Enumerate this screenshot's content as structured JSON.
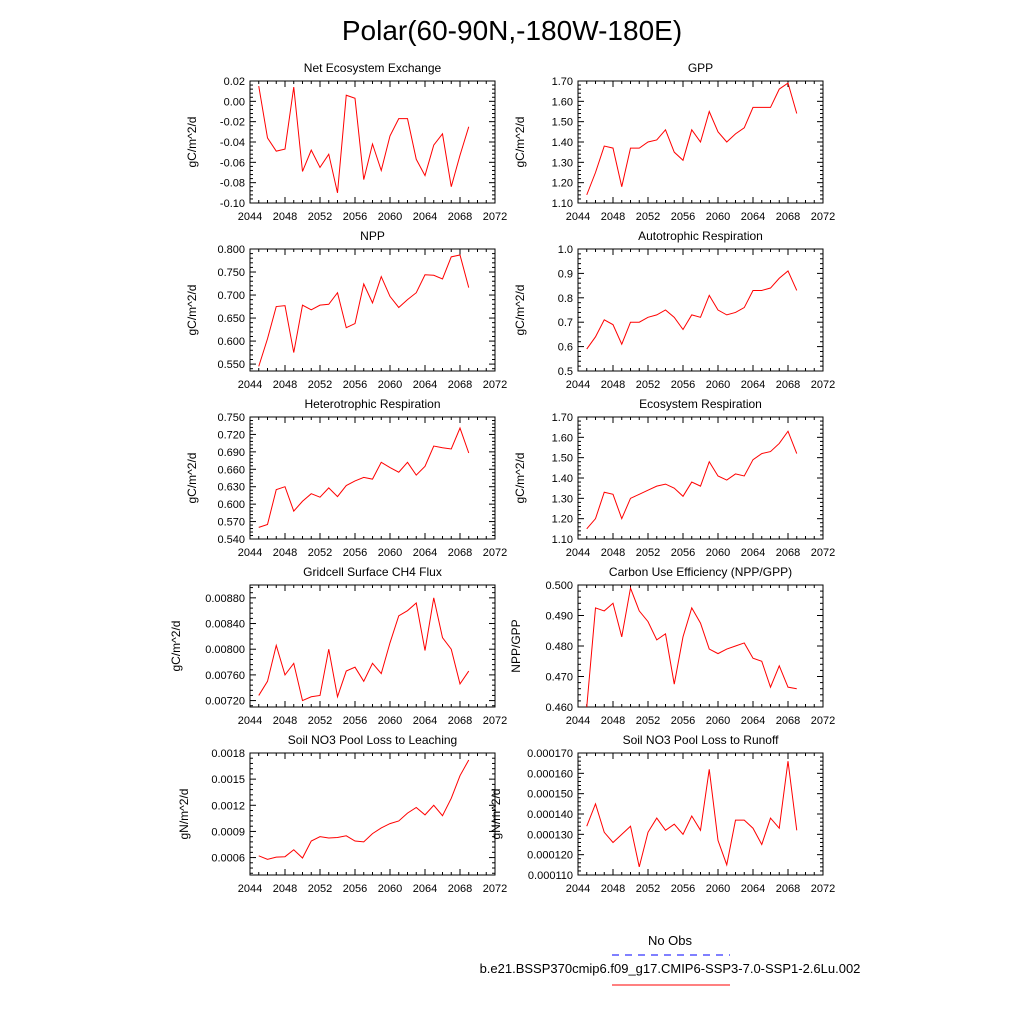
{
  "page": {
    "title": "Polar(60-90N,-180W-180E)"
  },
  "legend": {
    "entries": [
      {
        "label": "No Obs",
        "color": "#0000ff",
        "dash": "dashed"
      },
      {
        "label": "b.e21.BSSP370cmip6.f09_g17.CMIP6-SSP3-7.0-SSP1-2.6Lu.002",
        "color": "#ff0000",
        "dash": "solid"
      }
    ]
  },
  "chart_data": [
    {
      "type": "line",
      "title": "Net Ecosystem Exchange",
      "ylabel": "gC/m^2/d",
      "xlim": [
        2044,
        2072
      ],
      "ylim": [
        -0.1,
        0.02
      ],
      "xticks": [
        "2044",
        "2048",
        "2052",
        "2056",
        "2060",
        "2064",
        "2068",
        "2072"
      ],
      "yticks": [
        "-0.10",
        "-0.08",
        "-0.06",
        "-0.04",
        "-0.02",
        "0.00",
        "0.02"
      ],
      "x": [
        2045,
        2046,
        2047,
        2048,
        2049,
        2050,
        2051,
        2052,
        2053,
        2054,
        2055,
        2056,
        2057,
        2058,
        2059,
        2060,
        2061,
        2062,
        2063,
        2064,
        2065,
        2066,
        2067,
        2068,
        2069
      ],
      "series": [
        {
          "color": "#ff0000",
          "values": [
            0.015,
            -0.036,
            -0.049,
            -0.047,
            0.014,
            -0.069,
            -0.048,
            -0.065,
            -0.052,
            -0.09,
            0.006,
            0.003,
            -0.077,
            -0.042,
            -0.068,
            -0.034,
            -0.017,
            -0.017,
            -0.057,
            -0.073,
            -0.043,
            -0.032,
            -0.084,
            -0.053,
            -0.025
          ]
        }
      ]
    },
    {
      "type": "line",
      "title": "GPP",
      "ylabel": "gC/m^2/d",
      "xlim": [
        2044,
        2072
      ],
      "ylim": [
        1.1,
        1.7
      ],
      "xticks": [
        "2044",
        "2048",
        "2052",
        "2056",
        "2060",
        "2064",
        "2068",
        "2072"
      ],
      "yticks": [
        "1.10",
        "1.20",
        "1.30",
        "1.40",
        "1.50",
        "1.60",
        "1.70"
      ],
      "x": [
        2045,
        2046,
        2047,
        2048,
        2049,
        2050,
        2051,
        2052,
        2053,
        2054,
        2055,
        2056,
        2057,
        2058,
        2059,
        2060,
        2061,
        2062,
        2063,
        2064,
        2065,
        2066,
        2067,
        2068,
        2069
      ],
      "series": [
        {
          "color": "#ff0000",
          "values": [
            1.14,
            1.25,
            1.38,
            1.37,
            1.18,
            1.37,
            1.37,
            1.4,
            1.41,
            1.46,
            1.35,
            1.31,
            1.46,
            1.4,
            1.55,
            1.45,
            1.4,
            1.44,
            1.47,
            1.57,
            1.57,
            1.57,
            1.66,
            1.69,
            1.54
          ]
        }
      ]
    },
    {
      "type": "line",
      "title": "NPP",
      "ylabel": "gC/m^2/d",
      "xlim": [
        2044,
        2072
      ],
      "ylim": [
        0.535,
        0.8
      ],
      "xticks": [
        "2044",
        "2048",
        "2052",
        "2056",
        "2060",
        "2064",
        "2068",
        "2072"
      ],
      "yticks": [
        "0.550",
        "0.600",
        "0.650",
        "0.700",
        "0.750",
        "0.800"
      ],
      "x": [
        2045,
        2046,
        2047,
        2048,
        2049,
        2050,
        2051,
        2052,
        2053,
        2054,
        2055,
        2056,
        2057,
        2058,
        2059,
        2060,
        2061,
        2062,
        2063,
        2064,
        2065,
        2066,
        2067,
        2068,
        2069
      ],
      "series": [
        {
          "color": "#ff0000",
          "values": [
            0.545,
            0.605,
            0.675,
            0.677,
            0.575,
            0.678,
            0.668,
            0.678,
            0.68,
            0.705,
            0.629,
            0.638,
            0.724,
            0.683,
            0.74,
            0.697,
            0.673,
            0.69,
            0.705,
            0.744,
            0.743,
            0.735,
            0.783,
            0.787,
            0.716
          ]
        }
      ]
    },
    {
      "type": "line",
      "title": "Autotrophic Respiration",
      "ylabel": "gC/m^2/d",
      "xlim": [
        2044,
        2072
      ],
      "ylim": [
        0.5,
        1.0
      ],
      "xticks": [
        "2044",
        "2048",
        "2052",
        "2056",
        "2060",
        "2064",
        "2068",
        "2072"
      ],
      "yticks": [
        "0.5",
        "0.6",
        "0.7",
        "0.8",
        "0.9",
        "1.0"
      ],
      "x": [
        2045,
        2046,
        2047,
        2048,
        2049,
        2050,
        2051,
        2052,
        2053,
        2054,
        2055,
        2056,
        2057,
        2058,
        2059,
        2060,
        2061,
        2062,
        2063,
        2064,
        2065,
        2066,
        2067,
        2068,
        2069
      ],
      "series": [
        {
          "color": "#ff0000",
          "values": [
            0.59,
            0.64,
            0.71,
            0.69,
            0.61,
            0.7,
            0.7,
            0.72,
            0.73,
            0.75,
            0.72,
            0.67,
            0.73,
            0.72,
            0.81,
            0.75,
            0.73,
            0.74,
            0.76,
            0.83,
            0.83,
            0.84,
            0.88,
            0.91,
            0.83
          ]
        }
      ]
    },
    {
      "type": "line",
      "title": "Heterotrophic Respiration",
      "ylabel": "gC/m^2/d",
      "xlim": [
        2044,
        2072
      ],
      "ylim": [
        0.54,
        0.75
      ],
      "xticks": [
        "2044",
        "2048",
        "2052",
        "2056",
        "2060",
        "2064",
        "2068",
        "2072"
      ],
      "yticks": [
        "0.540",
        "0.570",
        "0.600",
        "0.630",
        "0.660",
        "0.690",
        "0.720",
        "0.750"
      ],
      "x": [
        2045,
        2046,
        2047,
        2048,
        2049,
        2050,
        2051,
        2052,
        2053,
        2054,
        2055,
        2056,
        2057,
        2058,
        2059,
        2060,
        2061,
        2062,
        2063,
        2064,
        2065,
        2066,
        2067,
        2068,
        2069
      ],
      "series": [
        {
          "color": "#ff0000",
          "values": [
            0.56,
            0.565,
            0.625,
            0.63,
            0.588,
            0.605,
            0.618,
            0.612,
            0.628,
            0.613,
            0.632,
            0.64,
            0.646,
            0.643,
            0.672,
            0.663,
            0.655,
            0.672,
            0.65,
            0.665,
            0.7,
            0.697,
            0.695,
            0.731,
            0.688
          ]
        }
      ]
    },
    {
      "type": "line",
      "title": "Ecosystem Respiration",
      "ylabel": "gC/m^2/d",
      "xlim": [
        2044,
        2072
      ],
      "ylim": [
        1.1,
        1.7
      ],
      "xticks": [
        "2044",
        "2048",
        "2052",
        "2056",
        "2060",
        "2064",
        "2068",
        "2072"
      ],
      "yticks": [
        "1.10",
        "1.20",
        "1.30",
        "1.40",
        "1.50",
        "1.60",
        "1.70"
      ],
      "x": [
        2045,
        2046,
        2047,
        2048,
        2049,
        2050,
        2051,
        2052,
        2053,
        2054,
        2055,
        2056,
        2057,
        2058,
        2059,
        2060,
        2061,
        2062,
        2063,
        2064,
        2065,
        2066,
        2067,
        2068,
        2069
      ],
      "series": [
        {
          "color": "#ff0000",
          "values": [
            1.15,
            1.2,
            1.33,
            1.32,
            1.2,
            1.3,
            1.32,
            1.34,
            1.36,
            1.37,
            1.35,
            1.31,
            1.38,
            1.36,
            1.48,
            1.41,
            1.39,
            1.42,
            1.41,
            1.49,
            1.52,
            1.53,
            1.57,
            1.63,
            1.52
          ]
        }
      ]
    },
    {
      "type": "line",
      "title": "Gridcell Surface CH4 Flux",
      "ylabel": "gC/m^2/d",
      "xlim": [
        2044,
        2072
      ],
      "ylim": [
        0.0071,
        0.009
      ],
      "xticks": [
        "2044",
        "2048",
        "2052",
        "2056",
        "2060",
        "2064",
        "2068",
        "2072"
      ],
      "yticks": [
        "0.00720",
        "0.00760",
        "0.00800",
        "0.00840",
        "0.00880"
      ],
      "x": [
        2045,
        2046,
        2047,
        2048,
        2049,
        2050,
        2051,
        2052,
        2053,
        2054,
        2055,
        2056,
        2057,
        2058,
        2059,
        2060,
        2061,
        2062,
        2063,
        2064,
        2065,
        2066,
        2067,
        2068,
        2069
      ],
      "series": [
        {
          "color": "#ff0000",
          "values": [
            0.00728,
            0.0075,
            0.00806,
            0.0076,
            0.00778,
            0.0072,
            0.00726,
            0.00728,
            0.008,
            0.00726,
            0.00766,
            0.00772,
            0.0075,
            0.00778,
            0.00762,
            0.0081,
            0.00852,
            0.0086,
            0.00872,
            0.00798,
            0.0088,
            0.00818,
            0.008,
            0.00746,
            0.00766
          ]
        }
      ]
    },
    {
      "type": "line",
      "title": "Carbon Use Efficiency (NPP/GPP)",
      "ylabel": "NPP/GPP",
      "xlim": [
        2044,
        2072
      ],
      "ylim": [
        0.46,
        0.5
      ],
      "xticks": [
        "2044",
        "2048",
        "2052",
        "2056",
        "2060",
        "2064",
        "2068",
        "2072"
      ],
      "yticks": [
        "0.460",
        "0.470",
        "0.480",
        "0.490",
        "0.500"
      ],
      "x": [
        2045,
        2046,
        2047,
        2048,
        2049,
        2050,
        2051,
        2052,
        2053,
        2054,
        2055,
        2056,
        2057,
        2058,
        2059,
        2060,
        2061,
        2062,
        2063,
        2064,
        2065,
        2066,
        2067,
        2068,
        2069
      ],
      "series": [
        {
          "color": "#ff0000",
          "values": [
            0.46,
            0.4925,
            0.4915,
            0.494,
            0.483,
            0.499,
            0.4915,
            0.488,
            0.482,
            0.484,
            0.4675,
            0.483,
            0.4925,
            0.4875,
            0.479,
            0.4775,
            0.479,
            0.48,
            0.481,
            0.476,
            0.475,
            0.4665,
            0.4735,
            0.4665,
            0.466
          ]
        }
      ]
    },
    {
      "type": "line",
      "title": "Soil NO3 Pool Loss to Leaching",
      "ylabel": "gN/m^2/d",
      "xlim": [
        2044,
        2072
      ],
      "ylim": [
        0.0004,
        0.0018
      ],
      "xticks": [
        "2044",
        "2048",
        "2052",
        "2056",
        "2060",
        "2064",
        "2068",
        "2072"
      ],
      "yticks": [
        "0.0006",
        "0.0009",
        "0.0012",
        "0.0015",
        "0.0018"
      ],
      "x": [
        2045,
        2046,
        2047,
        2048,
        2049,
        2050,
        2051,
        2052,
        2053,
        2054,
        2055,
        2056,
        2057,
        2058,
        2059,
        2060,
        2061,
        2062,
        2063,
        2064,
        2065,
        2066,
        2067,
        2068,
        2069
      ],
      "series": [
        {
          "color": "#ff0000",
          "values": [
            0.00062,
            0.00058,
            0.000605,
            0.00061,
            0.00069,
            0.000595,
            0.00079,
            0.00084,
            0.000825,
            0.00083,
            0.00085,
            0.00079,
            0.00078,
            0.000875,
            0.00094,
            0.00099,
            0.00102,
            0.00111,
            0.001175,
            0.00109,
            0.0012,
            0.00108,
            0.00128,
            0.00154,
            0.00172
          ]
        }
      ]
    },
    {
      "type": "line",
      "title": "Soil NO3 Pool Loss to Runoff",
      "ylabel": "gN/m^2/d",
      "xlim": [
        2044,
        2072
      ],
      "ylim": [
        0.00011,
        0.00017
      ],
      "xticks": [
        "2044",
        "2048",
        "2052",
        "2056",
        "2060",
        "2064",
        "2068",
        "2072"
      ],
      "yticks": [
        "0.000110",
        "0.000120",
        "0.000130",
        "0.000140",
        "0.000150",
        "0.000160",
        "0.000170"
      ],
      "x": [
        2045,
        2046,
        2047,
        2048,
        2049,
        2050,
        2051,
        2052,
        2053,
        2054,
        2055,
        2056,
        2057,
        2058,
        2059,
        2060,
        2061,
        2062,
        2063,
        2064,
        2065,
        2066,
        2067,
        2068,
        2069
      ],
      "series": [
        {
          "color": "#ff0000",
          "values": [
            0.000134,
            0.000145,
            0.000131,
            0.000126,
            0.00013,
            0.000134,
            0.000114,
            0.000131,
            0.000138,
            0.000132,
            0.000135,
            0.00013,
            0.000139,
            0.000132,
            0.000162,
            0.000127,
            0.000115,
            0.000137,
            0.000137,
            0.000133,
            0.000125,
            0.000138,
            0.000133,
            0.000166,
            0.000132
          ]
        }
      ]
    }
  ]
}
